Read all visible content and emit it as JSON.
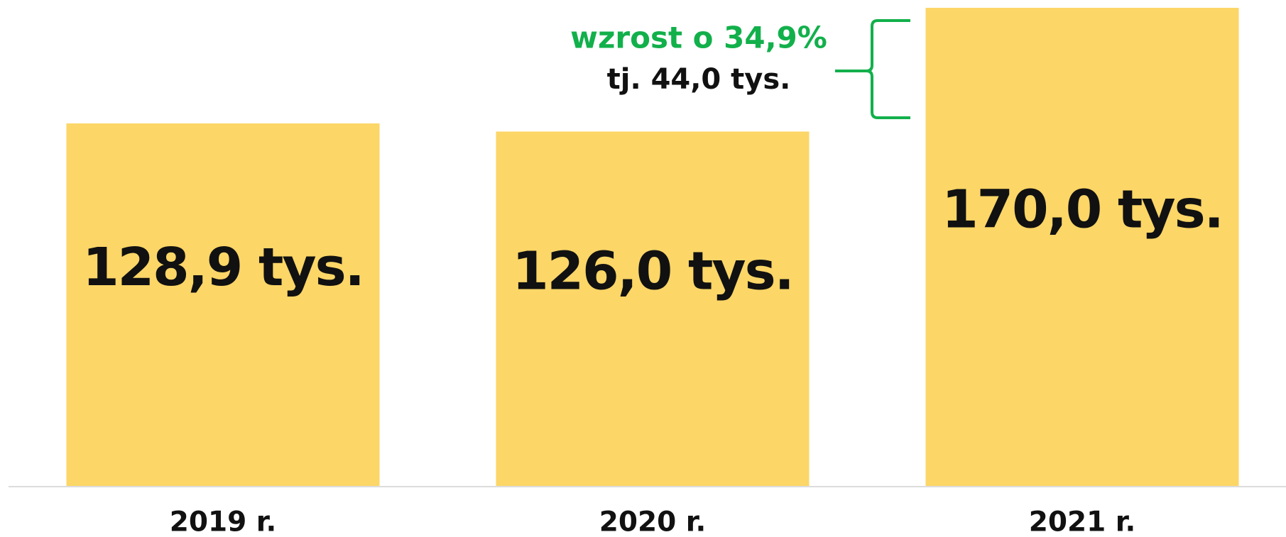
{
  "chart_data": {
    "type": "bar",
    "categories": [
      "2019 r.",
      "2020 r.",
      "2021 r."
    ],
    "values": [
      128.9,
      126.0,
      170.0
    ],
    "value_labels": [
      "128,9 tys.",
      "126,0 tys.",
      "170,0 tys."
    ],
    "color": "#fcd667",
    "ylim": [
      0,
      170
    ],
    "annotations": [
      {
        "text": "wzrost o 34,9%",
        "color": "#12b04b"
      },
      {
        "text": "tj. 44,0 tys.",
        "color": "#111111"
      }
    ]
  }
}
